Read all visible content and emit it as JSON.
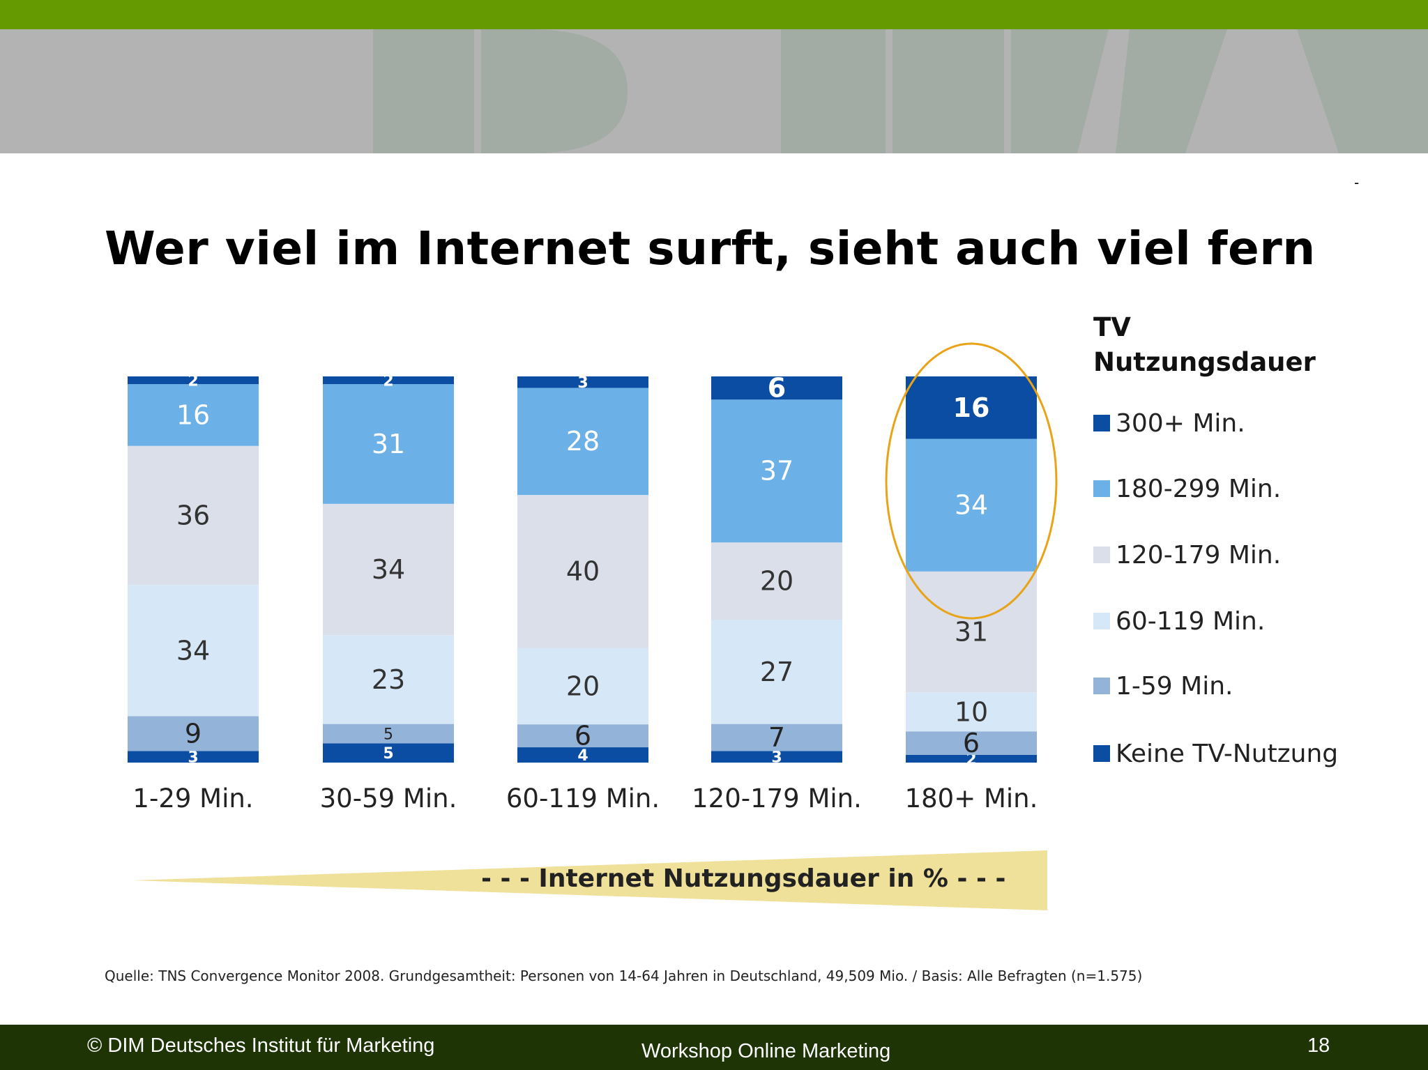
{
  "slide": {
    "title": "Wer viel im Internet surft, sieht auch viel fern",
    "dash_mark": "-",
    "source": "Quelle: TNS Convergence Monitor 2008. Grundgesamtheit: Personen von 14-64 Jahren in Deutschland, 49,509 Mio. / Basis: Alle Befragten (n=1.575)",
    "axis_caption": "- - -  Internet Nutzungsdauer in %  - - -"
  },
  "footer": {
    "copyright": "© DIM Deutsches Institut für Marketing",
    "workshop": "Workshop Online Marketing",
    "page_number": "18"
  },
  "colors": {
    "top_bar": "#659a00",
    "header": "#b3b3b3",
    "footer": "#1e3405",
    "highlight_ellipse": "#e8a317",
    "axis_banner": "#efe09a"
  },
  "chart_data": {
    "type": "bar",
    "stacked": true,
    "legend_title": "TV Nutzungsdauer",
    "legend_placement": "right",
    "categories": [
      "1-29 Min.",
      "30-59 Min.",
      "60-119 Min.",
      "120-179 Min.",
      "180+ Min."
    ],
    "series": [
      {
        "name": "Keine TV-Nutzung",
        "color": "#0a4da3",
        "values": [
          3,
          5,
          4,
          3,
          2
        ]
      },
      {
        "name": "1-59 Min.",
        "color": "#93b3d8",
        "values": [
          9,
          5,
          6,
          7,
          6
        ]
      },
      {
        "name": "60-119 Min.",
        "color": "#d6e7f7",
        "values": [
          34,
          23,
          20,
          27,
          10
        ]
      },
      {
        "name": "120-179 Min.",
        "color": "#dadfe9",
        "values": [
          36,
          34,
          40,
          20,
          31
        ]
      },
      {
        "name": "180-299 Min.",
        "color": "#6cb0e8",
        "values": [
          16,
          31,
          28,
          37,
          34
        ]
      },
      {
        "name": "300+ Min.",
        "color": "#0a4da3",
        "values": [
          2,
          2,
          3,
          6,
          16
        ]
      }
    ],
    "legend_order": [
      "300+ Min.",
      "180-299 Min.",
      "120-179 Min.",
      "60-119 Min.",
      "1-59 Min.",
      "Keine TV-Nutzung"
    ],
    "highlighted_category": "180+ Min.",
    "ylim": [
      0,
      100
    ],
    "grid": false
  }
}
